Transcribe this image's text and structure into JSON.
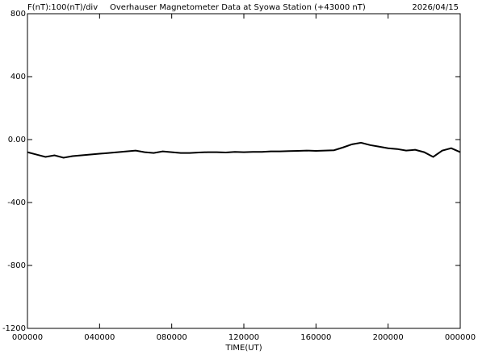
{
  "chart_data": {
    "type": "line",
    "scale_label": "F(nT):100(nT)/div",
    "title": "Overhauser Magnetometer Data at Syowa Station (+43000 nT)",
    "date": "2026/04/15",
    "xlabel": "TIME(UT)",
    "color": "#000000",
    "xlim": [
      0,
      24
    ],
    "xticks": [
      {
        "value": 0,
        "label": "000000"
      },
      {
        "value": 4,
        "label": "040000"
      },
      {
        "value": 8,
        "label": "080000"
      },
      {
        "value": 12,
        "label": "120000"
      },
      {
        "value": 16,
        "label": "160000"
      },
      {
        "value": 20,
        "label": "200000"
      },
      {
        "value": 24,
        "label": "000000"
      }
    ],
    "ylim": [
      -1200,
      800
    ],
    "yticks": [
      {
        "value": -1200,
        "label": "-1200"
      },
      {
        "value": -800,
        "label": "-800"
      },
      {
        "value": -400,
        "label": "-400"
      },
      {
        "value": 0,
        "label": "0.00"
      },
      {
        "value": 400,
        "label": "400"
      },
      {
        "value": 800,
        "label": "800"
      }
    ],
    "x": [
      0,
      0.5,
      1,
      1.5,
      2,
      2.5,
      3,
      3.5,
      4,
      4.5,
      5,
      5.5,
      6,
      6.5,
      7,
      7.5,
      8,
      8.5,
      9,
      9.5,
      10,
      10.5,
      11,
      11.5,
      12,
      12.5,
      13,
      13.5,
      14,
      14.5,
      15,
      15.5,
      16,
      16.5,
      17,
      17.5,
      18,
      18.5,
      19,
      19.5,
      20,
      20.5,
      21,
      21.5,
      22,
      22.5,
      23,
      23.5,
      24
    ],
    "values": [
      -80,
      -95,
      -110,
      -100,
      -115,
      -105,
      -100,
      -95,
      -90,
      -85,
      -80,
      -75,
      -70,
      -80,
      -85,
      -75,
      -80,
      -85,
      -85,
      -82,
      -80,
      -80,
      -82,
      -78,
      -80,
      -78,
      -78,
      -75,
      -75,
      -73,
      -72,
      -70,
      -72,
      -70,
      -68,
      -50,
      -30,
      -20,
      -35,
      -45,
      -55,
      -60,
      -70,
      -65,
      -80,
      -110,
      -70,
      -55,
      -80
    ]
  }
}
